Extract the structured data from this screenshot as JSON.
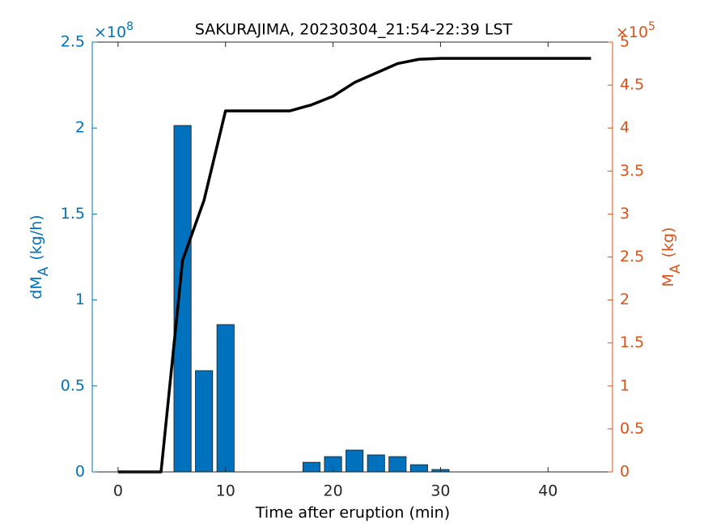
{
  "chart_data": {
    "type": "bar",
    "title": "SAKURAJIMA, 20230304_21:54-22:39 LST",
    "xlabel": "Time after eruption (min)",
    "ylabel": {
      "main": "dM",
      "sub": "A",
      "unit": "(kg/h)"
    },
    "y2label": {
      "main": "M",
      "sub": "A",
      "unit": "(kg)"
    },
    "y_multiplier": {
      "base": "×10",
      "exponent": "8"
    },
    "y2_multiplier": {
      "base": "×10",
      "exponent": "5"
    },
    "xlim": [
      -2.4,
      46
    ],
    "xticks": [
      0,
      10,
      20,
      30,
      40
    ],
    "ylim": [
      0,
      250000000
    ],
    "yticks": [
      {
        "value": 0,
        "label": "0"
      },
      {
        "value": 50000000,
        "label": "0.5"
      },
      {
        "value": 100000000,
        "label": "1"
      },
      {
        "value": 150000000,
        "label": "1.5"
      },
      {
        "value": 200000000,
        "label": "2"
      },
      {
        "value": 250000000,
        "label": "2.5"
      }
    ],
    "y2lim": [
      0,
      500000
    ],
    "y2ticks": [
      {
        "value": 0,
        "label": "0"
      },
      {
        "value": 50000,
        "label": "0.5"
      },
      {
        "value": 100000,
        "label": "1"
      },
      {
        "value": 150000,
        "label": "1.5"
      },
      {
        "value": 200000,
        "label": "2"
      },
      {
        "value": 250000,
        "label": "2.5"
      },
      {
        "value": 300000,
        "label": "3"
      },
      {
        "value": 350000,
        "label": "3.5"
      },
      {
        "value": 400000,
        "label": "4"
      },
      {
        "value": 450000,
        "label": "4.5"
      },
      {
        "value": 500000,
        "label": "5"
      }
    ],
    "y_color": "#0072bd",
    "y2_color": "#d95319",
    "series": [
      {
        "type": "bar",
        "axis": "y",
        "color": "#0072bd",
        "x": [
          6,
          8,
          10,
          18,
          20,
          22,
          24,
          26,
          28,
          30
        ],
        "values": [
          201500000,
          58900000,
          85700000,
          5600000,
          8900000,
          12700000,
          9900000,
          8900000,
          4200000,
          1400000
        ]
      },
      {
        "type": "line",
        "axis": "y2",
        "color": "#000000",
        "x": [
          0,
          2,
          4,
          6,
          8,
          10,
          12,
          14,
          16,
          18,
          20,
          22,
          24,
          26,
          28,
          30,
          32,
          34,
          36,
          38,
          40,
          42,
          44
        ],
        "values": [
          0,
          0,
          0,
          246000,
          316000,
          420000,
          420000,
          420000,
          420000,
          427000,
          437000,
          453000,
          464000,
          475000,
          480000,
          481000,
          481000,
          481000,
          481000,
          481000,
          481000,
          481000,
          481000
        ]
      }
    ]
  }
}
